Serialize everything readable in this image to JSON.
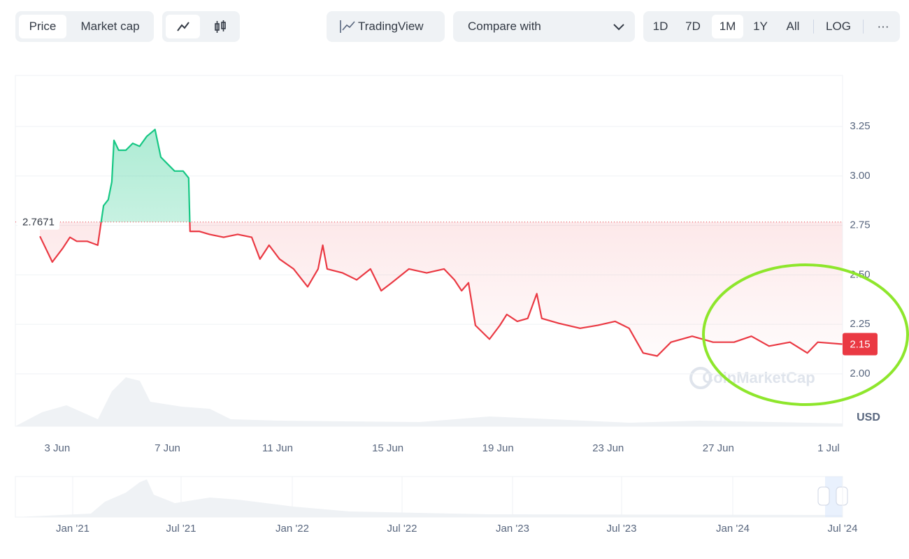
{
  "toolbar": {
    "view_tabs": [
      "Price",
      "Market cap"
    ],
    "tradingview": "TradingView",
    "compare": "Compare with",
    "ranges": [
      "1D",
      "7D",
      "1M",
      "1Y",
      "All"
    ],
    "log": "LOG",
    "more": "···"
  },
  "chart_data": {
    "type": "line",
    "x": [
      2.37,
      2.7,
      2.82,
      3.2,
      3.46,
      3.71,
      4.09,
      4.47,
      4.68,
      4.85,
      4.98,
      5.06,
      5.23,
      5.49,
      5.74,
      5.99,
      6.25,
      6.55,
      6.76,
      7.01,
      7.26,
      7.57,
      7.77,
      7.82,
      8.15,
      8.53,
      9.04,
      9.55,
      10.06,
      10.36,
      10.69,
      11.07,
      11.58,
      12.09,
      12.47,
      12.64,
      12.8,
      13.36,
      13.87,
      14.37,
      14.76,
      15.14,
      15.77,
      16.41,
      17.04,
      17.42,
      17.68,
      17.93,
      18.18,
      18.69,
      19.07,
      19.32,
      19.7,
      20.08,
      20.41,
      20.59,
      21.22,
      21.98,
      22.62,
      23.25,
      23.76,
      24.27,
      24.78,
      25.28,
      26.05,
      26.81,
      27.57,
      28.2,
      28.84,
      29.6,
      30.23,
      30.61,
      31.5
    ],
    "values": [
      2.695,
      2.6,
      2.565,
      2.635,
      2.69,
      2.67,
      2.67,
      2.65,
      2.85,
      2.88,
      2.97,
      3.18,
      3.13,
      3.13,
      3.165,
      3.15,
      3.2,
      3.235,
      3.095,
      3.06,
      3.025,
      3.025,
      2.99,
      2.72,
      2.72,
      2.705,
      2.69,
      2.705,
      2.69,
      2.58,
      2.65,
      2.58,
      2.53,
      2.44,
      2.53,
      2.65,
      2.53,
      2.51,
      2.475,
      2.53,
      2.42,
      2.46,
      2.53,
      2.51,
      2.53,
      2.475,
      2.42,
      2.46,
      2.245,
      2.175,
      2.245,
      2.3,
      2.265,
      2.28,
      2.405,
      2.28,
      2.255,
      2.23,
      2.245,
      2.265,
      2.23,
      2.105,
      2.09,
      2.16,
      2.19,
      2.16,
      2.16,
      2.19,
      2.14,
      2.16,
      2.105,
      2.16,
      2.15
    ],
    "baseline": 2.7671,
    "current": 2.15,
    "colors": {
      "up": "#16c784",
      "down": "#ea3943"
    },
    "xlim": [
      1.48,
      31.51
    ],
    "xticks": [
      {
        "value": 3,
        "label": "3 Jun"
      },
      {
        "value": 7,
        "label": "7 Jun"
      },
      {
        "value": 11,
        "label": "11 Jun"
      },
      {
        "value": 15,
        "label": "15 Jun"
      },
      {
        "value": 19,
        "label": "19 Jun"
      },
      {
        "value": 23,
        "label": "23 Jun"
      },
      {
        "value": 27,
        "label": "27 Jun"
      },
      {
        "value": 31,
        "label": "1 Jul"
      }
    ],
    "ylim": [
      1.735,
      3.508
    ],
    "yticks": [
      {
        "value": 2,
        "label": "2.00"
      },
      2.25,
      {
        "value": 2.5,
        "label": "2.50"
      },
      2.75,
      {
        "value": 3,
        "label": "3.00"
      },
      3.25
    ],
    "unit": "USD",
    "watermark": "CoinMarketCap",
    "navigator_labels": [
      "Jan '21",
      "Jul '21",
      "Jan '22",
      "Jul '22",
      "Jan '23",
      "Jul '23",
      "Jan '24",
      "Jul '24"
    ]
  }
}
